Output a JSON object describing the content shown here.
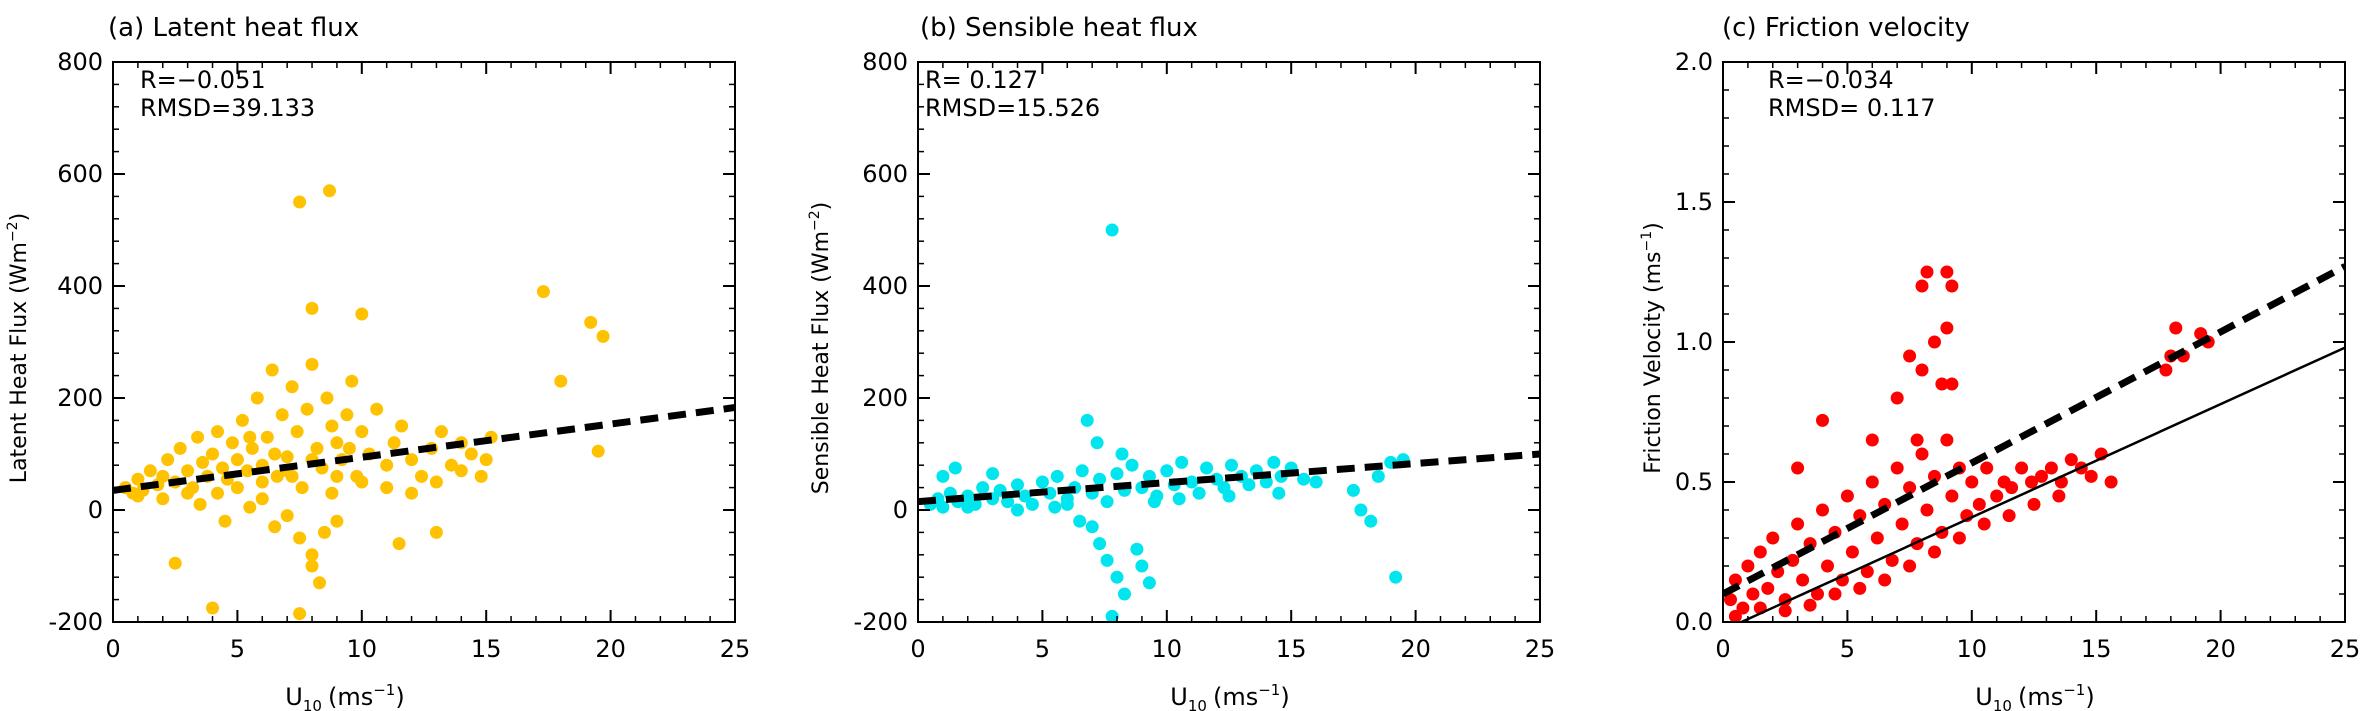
{
  "chart_data": [
    {
      "type": "scatter",
      "title": "(a) Latent heat flux",
      "xlabel_main": "U",
      "xlabel_sub": "10",
      "xlabel_unit": "(ms",
      "xlabel_exp": "−1",
      "xlabel_close": ")",
      "ylabel_main": "Latent Heat Flux (Wm",
      "ylabel_exp": "−2",
      "ylabel_close": ")",
      "stat_r": "R=−0.051",
      "stat_rmsd": "RMSD=39.133",
      "xlim": [
        0,
        25
      ],
      "ylim": [
        -200,
        800
      ],
      "xticks": [
        0,
        5,
        10,
        15,
        20,
        25
      ],
      "yticks": [
        -200,
        0,
        200,
        400,
        600,
        800
      ],
      "color": "#FFC200",
      "fit_dashed": {
        "x": [
          0,
          25
        ],
        "y": [
          35,
          183
        ]
      },
      "points": [
        [
          0.5,
          40
        ],
        [
          0.8,
          30
        ],
        [
          1.0,
          55
        ],
        [
          1.2,
          35
        ],
        [
          1.5,
          70
        ],
        [
          1.8,
          45
        ],
        [
          2.0,
          60
        ],
        [
          2.2,
          90
        ],
        [
          2.5,
          50
        ],
        [
          2.7,
          110
        ],
        [
          3.0,
          70
        ],
        [
          3.2,
          40
        ],
        [
          3.4,
          130
        ],
        [
          3.6,
          85
        ],
        [
          3.8,
          60
        ],
        [
          4.0,
          100
        ],
        [
          4.2,
          140
        ],
        [
          4.4,
          75
        ],
        [
          4.6,
          55
        ],
        [
          4.8,
          120
        ],
        [
          5.0,
          90
        ],
        [
          5.2,
          160
        ],
        [
          5.4,
          70
        ],
        [
          5.6,
          110
        ],
        [
          5.8,
          200
        ],
        [
          6.0,
          80
        ],
        [
          6.2,
          130
        ],
        [
          6.4,
          250
        ],
        [
          6.6,
          60
        ],
        [
          6.8,
          170
        ],
        [
          7.0,
          95
        ],
        [
          7.2,
          220
        ],
        [
          7.4,
          140
        ],
        [
          7.6,
          40
        ],
        [
          7.8,
          180
        ],
        [
          8.0,
          260
        ],
        [
          8.2,
          110
        ],
        [
          8.4,
          75
        ],
        [
          8.6,
          200
        ],
        [
          8.8,
          150
        ],
        [
          9.0,
          120
        ],
        [
          9.2,
          90
        ],
        [
          9.4,
          170
        ],
        [
          9.6,
          230
        ],
        [
          9.8,
          60
        ],
        [
          10.0,
          140
        ],
        [
          10.3,
          100
        ],
        [
          10.6,
          180
        ],
        [
          11.0,
          80
        ],
        [
          11.3,
          120
        ],
        [
          11.6,
          150
        ],
        [
          12.0,
          90
        ],
        [
          12.4,
          60
        ],
        [
          12.8,
          110
        ],
        [
          13.2,
          140
        ],
        [
          13.6,
          80
        ],
        [
          14.0,
          120
        ],
        [
          14.4,
          100
        ],
        [
          14.8,
          60
        ],
        [
          15.2,
          130
        ],
        [
          3.5,
          10
        ],
        [
          4.5,
          -20
        ],
        [
          5.5,
          5
        ],
        [
          6.5,
          -30
        ],
        [
          7.5,
          -50
        ],
        [
          8.0,
          -80
        ],
        [
          8.5,
          -40
        ],
        [
          9.0,
          -20
        ],
        [
          6.0,
          20
        ],
        [
          7.0,
          -10
        ],
        [
          2.5,
          -95
        ],
        [
          4.0,
          -175
        ],
        [
          7.5,
          -185
        ],
        [
          8.3,
          -130
        ],
        [
          8.0,
          -100
        ],
        [
          11.5,
          -60
        ],
        [
          13.0,
          -40
        ],
        [
          7.5,
          550
        ],
        [
          8.7,
          570
        ],
        [
          8.0,
          360
        ],
        [
          10.0,
          350
        ],
        [
          17.3,
          390
        ],
        [
          19.2,
          335
        ],
        [
          19.7,
          310
        ],
        [
          19.5,
          105
        ],
        [
          18.0,
          230
        ],
        [
          1.0,
          25
        ],
        [
          2.0,
          20
        ],
        [
          3.0,
          30
        ],
        [
          5.0,
          40
        ],
        [
          6.0,
          50
        ],
        [
          7.0,
          70
        ],
        [
          8.0,
          90
        ],
        [
          9.0,
          60
        ],
        [
          10.0,
          50
        ],
        [
          11.0,
          40
        ],
        [
          12.0,
          30
        ],
        [
          13.0,
          50
        ],
        [
          14.0,
          70
        ],
        [
          15.0,
          90
        ],
        [
          6.5,
          100
        ],
        [
          7.2,
          60
        ],
        [
          8.8,
          30
        ],
        [
          9.5,
          110
        ],
        [
          5.5,
          130
        ],
        [
          4.2,
          30
        ]
      ]
    },
    {
      "type": "scatter",
      "title": "(b) Sensible heat flux",
      "xlabel_main": "U",
      "xlabel_sub": "10",
      "xlabel_unit": "(ms",
      "xlabel_exp": "−1",
      "xlabel_close": ")",
      "ylabel_main": "Sensible Heat Flux (Wm",
      "ylabel_exp": "−2",
      "ylabel_close": ")",
      "stat_r": "R= 0.127",
      "stat_rmsd": "RMSD=15.526",
      "xlim": [
        0,
        25
      ],
      "ylim": [
        -200,
        800
      ],
      "xticks": [
        0,
        5,
        10,
        15,
        20,
        25
      ],
      "yticks": [
        -200,
        0,
        200,
        400,
        600,
        800
      ],
      "color": "#00E5EE",
      "fit_dashed": {
        "x": [
          0,
          25
        ],
        "y": [
          15,
          100
        ]
      },
      "points": [
        [
          0.5,
          10
        ],
        [
          0.8,
          20
        ],
        [
          1.0,
          5
        ],
        [
          1.3,
          30
        ],
        [
          1.6,
          15
        ],
        [
          2.0,
          25
        ],
        [
          2.3,
          10
        ],
        [
          2.6,
          40
        ],
        [
          3.0,
          20
        ],
        [
          3.3,
          35
        ],
        [
          3.6,
          15
        ],
        [
          4.0,
          45
        ],
        [
          4.3,
          25
        ],
        [
          4.6,
          10
        ],
        [
          5.0,
          50
        ],
        [
          5.3,
          30
        ],
        [
          5.6,
          60
        ],
        [
          6.0,
          20
        ],
        [
          6.3,
          40
        ],
        [
          6.6,
          70
        ],
        [
          7.0,
          30
        ],
        [
          7.3,
          55
        ],
        [
          7.6,
          15
        ],
        [
          8.0,
          65
        ],
        [
          8.3,
          35
        ],
        [
          8.6,
          80
        ],
        [
          9.0,
          40
        ],
        [
          9.3,
          60
        ],
        [
          9.6,
          25
        ],
        [
          10.0,
          70
        ],
        [
          10.3,
          45
        ],
        [
          10.6,
          85
        ],
        [
          11.0,
          50
        ],
        [
          11.3,
          30
        ],
        [
          11.6,
          75
        ],
        [
          12.0,
          55
        ],
        [
          12.3,
          40
        ],
        [
          12.6,
          80
        ],
        [
          13.0,
          60
        ],
        [
          13.3,
          45
        ],
        [
          13.6,
          70
        ],
        [
          14.0,
          50
        ],
        [
          14.3,
          85
        ],
        [
          14.6,
          60
        ],
        [
          15.0,
          75
        ],
        [
          15.5,
          55
        ],
        [
          16.0,
          50
        ],
        [
          1.0,
          60
        ],
        [
          1.5,
          75
        ],
        [
          3.0,
          65
        ],
        [
          6.8,
          160
        ],
        [
          7.2,
          120
        ],
        [
          7.8,
          500
        ],
        [
          8.2,
          100
        ],
        [
          7.0,
          -30
        ],
        [
          7.3,
          -60
        ],
        [
          7.6,
          -90
        ],
        [
          8.0,
          -120
        ],
        [
          8.3,
          -150
        ],
        [
          7.8,
          -190
        ],
        [
          8.0,
          -210
        ],
        [
          9.0,
          -100
        ],
        [
          9.3,
          -130
        ],
        [
          8.8,
          -70
        ],
        [
          6.5,
          -20
        ],
        [
          17.5,
          35
        ],
        [
          17.8,
          0
        ],
        [
          18.2,
          -20
        ],
        [
          19.0,
          85
        ],
        [
          19.5,
          90
        ],
        [
          19.2,
          -120
        ],
        [
          18.5,
          60
        ],
        [
          2.0,
          5
        ],
        [
          4.0,
          0
        ],
        [
          5.5,
          5
        ],
        [
          6.0,
          10
        ],
        [
          9.5,
          15
        ],
        [
          10.5,
          20
        ],
        [
          12.5,
          25
        ],
        [
          14.5,
          30
        ]
      ]
    },
    {
      "type": "scatter",
      "title": "(c) Friction velocity",
      "xlabel_main": "U",
      "xlabel_sub": "10",
      "xlabel_unit": "(ms",
      "xlabel_exp": "−1",
      "xlabel_close": ")",
      "ylabel_main": "Friction Velocity (ms",
      "ylabel_exp": "−1",
      "ylabel_close": ")",
      "stat_r": "R=−0.034",
      "stat_rmsd": "RMSD= 0.117",
      "xlim": [
        0,
        25
      ],
      "ylim": [
        0,
        2.0
      ],
      "xticks": [
        0,
        5,
        10,
        15,
        20,
        25
      ],
      "yticks": [
        "0.0",
        "0.5",
        "1.0",
        "1.5",
        "2.0"
      ],
      "ytick_values": [
        0,
        0.5,
        1.0,
        1.5,
        2.0
      ],
      "color": "#FF0000",
      "fit_dashed": {
        "x": [
          0,
          25
        ],
        "y": [
          0.1,
          1.27
        ]
      },
      "fit_solid": {
        "x": [
          0,
          25
        ],
        "y": [
          -0.03,
          0.98
        ]
      },
      "points": [
        [
          0.3,
          0.08
        ],
        [
          0.5,
          0.15
        ],
        [
          0.8,
          0.05
        ],
        [
          1.0,
          0.2
        ],
        [
          1.2,
          0.1
        ],
        [
          1.5,
          0.25
        ],
        [
          1.8,
          0.12
        ],
        [
          2.0,
          0.3
        ],
        [
          2.2,
          0.18
        ],
        [
          2.5,
          0.08
        ],
        [
          2.8,
          0.22
        ],
        [
          3.0,
          0.35
        ],
        [
          3.2,
          0.15
        ],
        [
          3.5,
          0.28
        ],
        [
          3.8,
          0.1
        ],
        [
          4.0,
          0.4
        ],
        [
          4.2,
          0.2
        ],
        [
          4.5,
          0.32
        ],
        [
          4.8,
          0.15
        ],
        [
          5.0,
          0.45
        ],
        [
          5.2,
          0.25
        ],
        [
          5.5,
          0.38
        ],
        [
          5.8,
          0.18
        ],
        [
          6.0,
          0.5
        ],
        [
          6.2,
          0.3
        ],
        [
          6.5,
          0.42
        ],
        [
          6.8,
          0.22
        ],
        [
          7.0,
          0.55
        ],
        [
          7.2,
          0.35
        ],
        [
          7.5,
          0.48
        ],
        [
          7.8,
          0.28
        ],
        [
          8.0,
          0.6
        ],
        [
          8.2,
          0.4
        ],
        [
          8.5,
          0.52
        ],
        [
          8.8,
          0.32
        ],
        [
          9.0,
          0.65
        ],
        [
          9.2,
          0.45
        ],
        [
          9.5,
          0.55
        ],
        [
          9.8,
          0.38
        ],
        [
          10.0,
          0.5
        ],
        [
          10.3,
          0.42
        ],
        [
          10.6,
          0.55
        ],
        [
          11.0,
          0.45
        ],
        [
          11.3,
          0.5
        ],
        [
          11.6,
          0.48
        ],
        [
          12.0,
          0.55
        ],
        [
          12.4,
          0.5
        ],
        [
          12.8,
          0.52
        ],
        [
          13.2,
          0.55
        ],
        [
          13.6,
          0.5
        ],
        [
          14.0,
          0.58
        ],
        [
          14.4,
          0.55
        ],
        [
          14.8,
          0.52
        ],
        [
          15.2,
          0.6
        ],
        [
          15.6,
          0.5
        ],
        [
          4.0,
          0.72
        ],
        [
          3.0,
          0.55
        ],
        [
          6.0,
          0.65
        ],
        [
          7.0,
          0.8
        ],
        [
          7.5,
          0.95
        ],
        [
          8.0,
          1.2
        ],
        [
          8.2,
          1.25
        ],
        [
          8.5,
          1.0
        ],
        [
          9.0,
          1.25
        ],
        [
          9.2,
          1.2
        ],
        [
          9.0,
          1.05
        ],
        [
          8.8,
          0.85
        ],
        [
          9.2,
          0.85
        ],
        [
          8.0,
          0.9
        ],
        [
          7.8,
          0.65
        ],
        [
          18.0,
          0.95
        ],
        [
          18.2,
          1.05
        ],
        [
          18.5,
          0.95
        ],
        [
          19.2,
          1.03
        ],
        [
          19.5,
          1.0
        ],
        [
          17.8,
          0.9
        ],
        [
          0.5,
          0.02
        ],
        [
          1.5,
          0.05
        ],
        [
          2.5,
          0.04
        ],
        [
          3.5,
          0.06
        ],
        [
          4.5,
          0.1
        ],
        [
          5.5,
          0.12
        ],
        [
          6.5,
          0.15
        ],
        [
          7.5,
          0.2
        ],
        [
          8.5,
          0.25
        ],
        [
          9.5,
          0.3
        ],
        [
          10.5,
          0.35
        ],
        [
          11.5,
          0.38
        ],
        [
          12.5,
          0.42
        ],
        [
          13.5,
          0.45
        ]
      ]
    }
  ]
}
